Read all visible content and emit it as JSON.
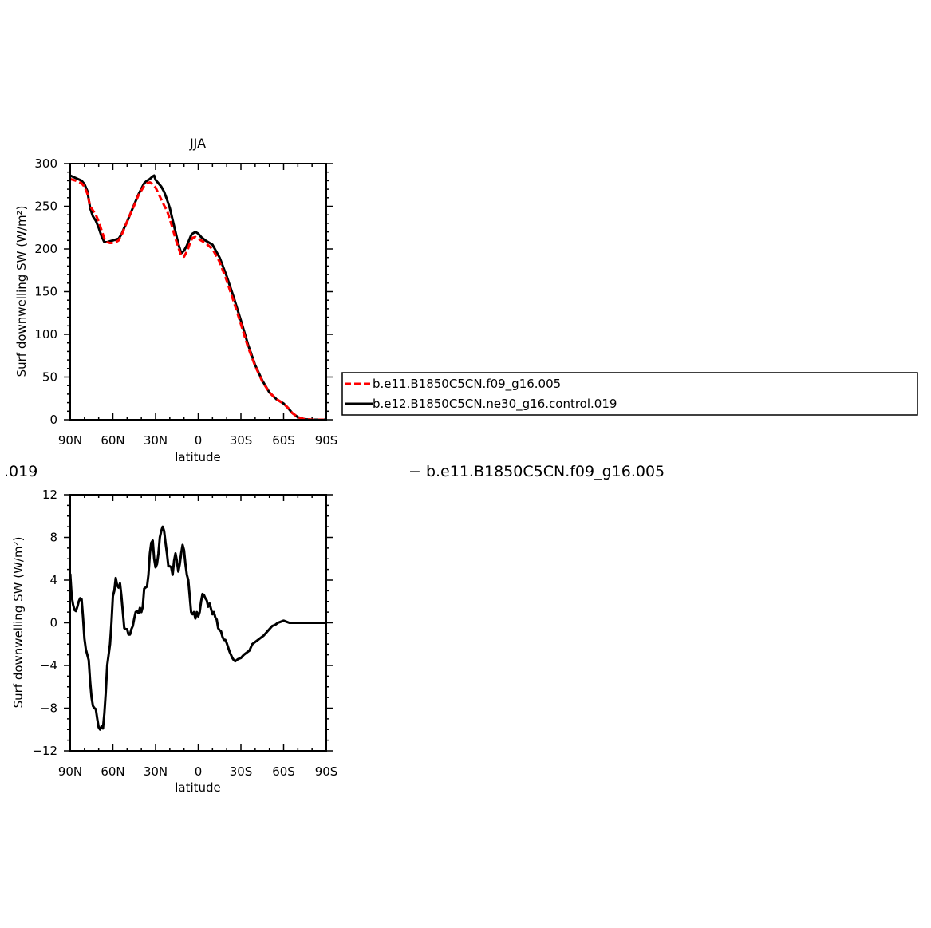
{
  "chart_data": [
    {
      "type": "line",
      "title": "JJA",
      "xlabel": "latitude",
      "ylabel": "Surf downwelling SW (W/m²)",
      "x_tick_labels": [
        "90N",
        "60N",
        "30N",
        "0",
        "30S",
        "60S",
        "90S"
      ],
      "y_tick_labels": [
        "0",
        "50",
        "100",
        "150",
        "200",
        "250",
        "300"
      ],
      "xlim": [
        90,
        -90
      ],
      "ylim": [
        0,
        300
      ],
      "legend_position": "right",
      "series": [
        {
          "name": "b.e11.B1850C5CN.f09_g16.005",
          "color": "#ff0000",
          "dash": true,
          "x": [
            90,
            86,
            82,
            80,
            78,
            76,
            74,
            72,
            70,
            68,
            66,
            64,
            62,
            60,
            58,
            56,
            54,
            52,
            50,
            48,
            45,
            42,
            38,
            36,
            34,
            32,
            30,
            28,
            26,
            24,
            22,
            20,
            18,
            16,
            14,
            12,
            10,
            8,
            7,
            6,
            5,
            4,
            2,
            0,
            -2,
            -5,
            -10,
            -15,
            -20,
            -25,
            -30,
            -35,
            -40,
            -45,
            -50,
            -55,
            -60,
            -63,
            -66,
            -70,
            -75,
            -80,
            -85,
            -90
          ],
          "y": [
            282,
            280,
            277,
            273,
            265,
            250,
            245,
            240,
            232,
            222,
            212,
            208,
            207,
            207,
            208,
            210,
            216,
            224,
            232,
            240,
            251,
            263,
            274,
            277,
            278,
            276,
            272,
            265,
            258,
            251,
            245,
            235,
            224,
            212,
            202,
            192,
            191,
            197,
            201,
            206,
            210,
            213,
            214,
            212,
            210,
            207,
            200,
            185,
            163,
            138,
            112,
            85,
            63,
            45,
            32,
            24,
            19,
            14,
            8,
            3,
            0.5,
            0,
            0,
            0
          ]
        },
        {
          "name": "b.e12.B1850C5CN.ne30_g16.control.019",
          "color": "#000000",
          "dash": false,
          "x": [
            90,
            86,
            82,
            80,
            78,
            76,
            74,
            72,
            70,
            68,
            66,
            64,
            62,
            60,
            58,
            56,
            54,
            52,
            50,
            48,
            45,
            42,
            38,
            36,
            34,
            32,
            31,
            30,
            28,
            26,
            24,
            22,
            20,
            18,
            16,
            14,
            12,
            10,
            8,
            7,
            6,
            5,
            4,
            2,
            0,
            -2,
            -5,
            -10,
            -15,
            -20,
            -25,
            -30,
            -35,
            -40,
            -45,
            -50,
            -55,
            -60,
            -63,
            -66,
            -70,
            -75,
            -80,
            -85,
            -90
          ],
          "y": [
            286,
            283,
            280,
            276,
            268,
            248,
            238,
            233,
            225,
            215,
            208,
            208,
            209,
            210,
            211,
            212,
            217,
            225,
            232,
            240,
            252,
            264,
            277,
            280,
            282,
            285,
            286,
            281,
            277,
            273,
            267,
            258,
            248,
            234,
            220,
            206,
            195,
            198,
            204,
            208,
            212,
            216,
            218,
            220,
            218,
            214,
            210,
            205,
            190,
            168,
            143,
            116,
            88,
            64,
            46,
            32,
            24,
            19,
            14,
            8,
            3,
            0.5,
            0,
            0,
            0
          ]
        }
      ]
    },
    {
      "type": "line",
      "title": "",
      "xlabel": "latitude",
      "ylabel": "Surf downwelling SW (W/m²)",
      "x_tick_labels": [
        "90N",
        "60N",
        "30N",
        "0",
        "30S",
        "60S",
        "90S"
      ],
      "y_tick_labels": [
        "−12",
        "−8",
        "−4",
        "0",
        "4",
        "8",
        "12"
      ],
      "xlim": [
        90,
        -90
      ],
      "ylim": [
        -12,
        12
      ],
      "series": [
        {
          "color": "#000000",
          "x": [
            90,
            89,
            88,
            87,
            86,
            85,
            84,
            83,
            82,
            81,
            80,
            79,
            78,
            77,
            76,
            75,
            74,
            73,
            72,
            71,
            70,
            69,
            68,
            67,
            66,
            65,
            64,
            63,
            62,
            61,
            60,
            59,
            58,
            57,
            56,
            55,
            54,
            53,
            52,
            51,
            50,
            49,
            48,
            47,
            46,
            45,
            44,
            43,
            42,
            41,
            40,
            39,
            38,
            37,
            36,
            35,
            34,
            33,
            32,
            31,
            30,
            29,
            28,
            27,
            26,
            25,
            24,
            23,
            22,
            21,
            20,
            19,
            18,
            17,
            16,
            15,
            14,
            13,
            12,
            11,
            10,
            9,
            8,
            7,
            6,
            5,
            4,
            3,
            2,
            1,
            0,
            -1,
            -2,
            -3,
            -4,
            -5,
            -6,
            -7,
            -8,
            -9,
            -10,
            -11,
            -12,
            -13,
            -14,
            -15,
            -16,
            -17,
            -18,
            -19,
            -20,
            -21,
            -22,
            -23,
            -24,
            -25,
            -26,
            -28,
            -30,
            -32,
            -34,
            -36,
            -37,
            -38,
            -40,
            -42,
            -44,
            -46,
            -48,
            -50,
            -52,
            -54,
            -56,
            -58,
            -60,
            -62,
            -64,
            -66,
            -68,
            -70,
            -75,
            -80,
            -85,
            -90
          ],
          "y": [
            4.6,
            2.5,
            1.7,
            1.2,
            1.1,
            1.5,
            2.0,
            2.3,
            2.2,
            0.5,
            -1.5,
            -2.5,
            -3.0,
            -3.5,
            -5.5,
            -7.0,
            -7.8,
            -8.0,
            -8.1,
            -9.0,
            -9.8,
            -10.0,
            -9.7,
            -9.9,
            -8.5,
            -6.5,
            -4.0,
            -3.0,
            -2.0,
            0.0,
            2.5,
            3.0,
            4.2,
            3.5,
            3.3,
            3.7,
            2.5,
            1.0,
            -0.5,
            -0.6,
            -0.6,
            -1.1,
            -1.1,
            -0.6,
            -0.3,
            0.4,
            1.0,
            1.1,
            0.9,
            1.4,
            1.0,
            1.5,
            3.2,
            3.3,
            3.4,
            4.5,
            6.5,
            7.5,
            7.7,
            6.0,
            5.2,
            5.5,
            6.5,
            8.0,
            8.6,
            9.0,
            8.6,
            7.5,
            6.5,
            5.3,
            5.3,
            5.2,
            4.5,
            5.8,
            6.5,
            5.8,
            4.8,
            5.5,
            6.5,
            7.3,
            6.8,
            5.5,
            4.5,
            4.0,
            2.5,
            1.0,
            0.8,
            1.0,
            0.4,
            1.0,
            0.6,
            1.0,
            2.0,
            2.7,
            2.6,
            2.3,
            2.1,
            1.5,
            1.8,
            1.3,
            0.8,
            1.0,
            0.5,
            0.3,
            -0.5,
            -0.7,
            -0.8,
            -1.3,
            -1.6,
            -1.6,
            -1.9,
            -2.3,
            -2.7,
            -3.0,
            -3.3,
            -3.5,
            -3.6,
            -3.4,
            -3.3,
            -3.0,
            -2.8,
            -2.6,
            -2.3,
            -2.0,
            -1.8,
            -1.6,
            -1.4,
            -1.2,
            -0.9,
            -0.6,
            -0.3,
            -0.2,
            0.0,
            0.1,
            0.2,
            0.1,
            0.0,
            0.0,
            0.0,
            0.0,
            0.0,
            0.0,
            0.0,
            0.0
          ]
        }
      ]
    }
  ],
  "diff_caption_left": ".019",
  "diff_caption_right": "− b.e11.B1850C5CN.f09_g16.005"
}
